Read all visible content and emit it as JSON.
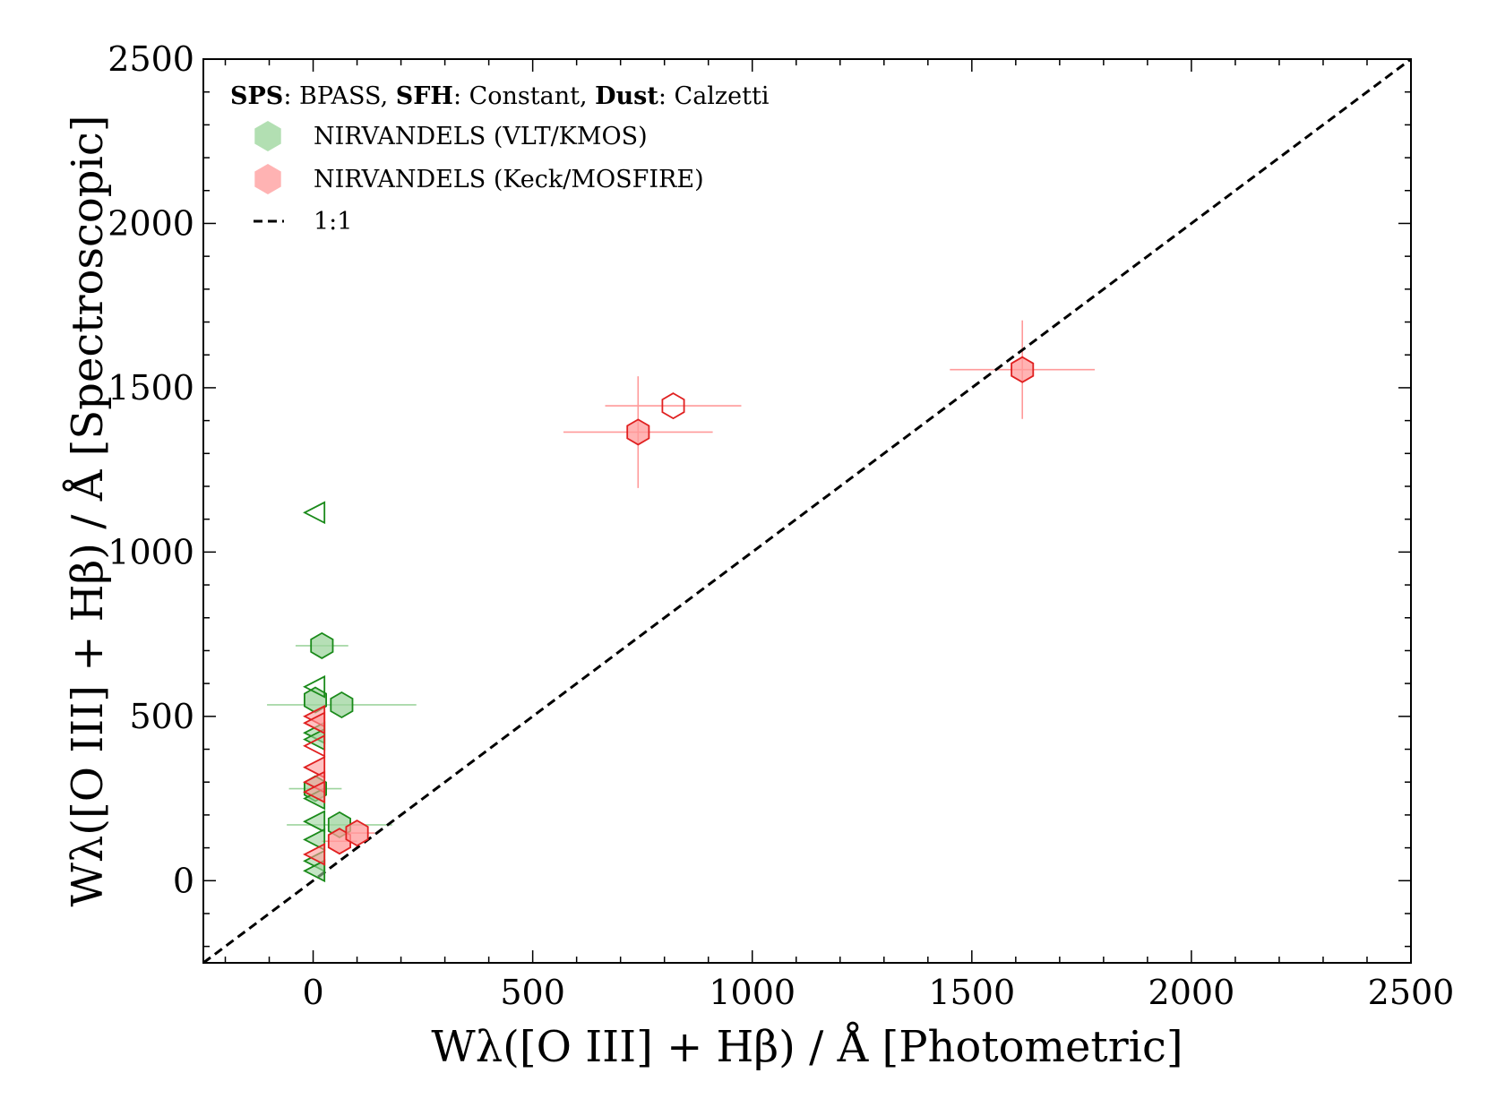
{
  "chart_data": {
    "type": "scatter",
    "title": "",
    "xlabel": "Wλ([O III] + Hβ) / Å  [Photometric]",
    "ylabel": "Wλ([O III] + Hβ) / Å  [Spectroscopic]",
    "xlim": [
      -250,
      2500
    ],
    "ylim": [
      -250,
      2500
    ],
    "xticks": [
      0,
      500,
      1000,
      1500,
      2000,
      2500
    ],
    "yticks": [
      0,
      500,
      1000,
      1500,
      2000,
      2500
    ],
    "xtick_labels": [
      "0",
      "500",
      "1000",
      "1500",
      "2000",
      "2500"
    ],
    "ytick_labels": [
      "0",
      "500",
      "1000",
      "1500",
      "2000",
      "2500"
    ],
    "grid": false,
    "legend_position": "top-left",
    "annotation": {
      "sps_key": "SPS",
      "sps_value": ": BPASS, ",
      "sfh_key": "SFH",
      "sfh_value": ": Constant, ",
      "dust_key": "Dust",
      "dust_value": ": Calzetti"
    },
    "legend": [
      {
        "label": "NIRVANDELS (VLT/KMOS)",
        "color": "#7fc97f",
        "marker": "hexagon"
      },
      {
        "label": "NIRVANDELS (Keck/MOSFIRE)",
        "color": "#ff8080",
        "marker": "hexagon"
      },
      {
        "label": "1:1",
        "color": "#000000",
        "marker": "dashed-line"
      }
    ],
    "reference_line": {
      "label": "1:1",
      "from": [
        -250,
        -250
      ],
      "to": [
        2500,
        2500
      ]
    },
    "series": [
      {
        "name": "NIRVANDELS (VLT/KMOS)",
        "edge_color": "#1a8a1a",
        "fill_color": "#9ed49e",
        "points": [
          {
            "x": 20,
            "y": 715,
            "xerr": 60,
            "yerr": 0,
            "marker": "hexagon",
            "filled": true
          },
          {
            "x": 65,
            "y": 535,
            "xerr": 170,
            "yerr": 0,
            "marker": "hexagon",
            "filled": true
          },
          {
            "x": 5,
            "y": 550,
            "xerr": 0,
            "yerr": 0,
            "marker": "hexagon",
            "filled": true
          },
          {
            "x": 60,
            "y": 170,
            "xerr": 120,
            "yerr": 0,
            "marker": "hexagon",
            "filled": true
          },
          {
            "x": 5,
            "y": 280,
            "xerr": 60,
            "yerr": 0,
            "marker": "hexagon",
            "filled": true
          },
          {
            "x": 5,
            "y": 1120,
            "marker": "triangle-left",
            "filled": false
          },
          {
            "x": 5,
            "y": 590,
            "marker": "triangle-left",
            "filled": false
          },
          {
            "x": 5,
            "y": 450,
            "marker": "triangle-left",
            "filled": true
          },
          {
            "x": 5,
            "y": 430,
            "marker": "triangle-left",
            "filled": true
          },
          {
            "x": 5,
            "y": 250,
            "marker": "triangle-left",
            "filled": true
          },
          {
            "x": 5,
            "y": 180,
            "marker": "triangle-left",
            "filled": true
          },
          {
            "x": 5,
            "y": 125,
            "marker": "triangle-left",
            "filled": true
          },
          {
            "x": 5,
            "y": 60,
            "marker": "triangle-left",
            "filled": true
          },
          {
            "x": 5,
            "y": 30,
            "marker": "triangle-left",
            "filled": true
          }
        ]
      },
      {
        "name": "NIRVANDELS (Keck/MOSFIRE)",
        "edge_color": "#e02020",
        "fill_color": "#ff9a9a",
        "points": [
          {
            "x": 1615,
            "y": 1555,
            "xerr": 165,
            "yerr": 150,
            "marker": "hexagon",
            "filled": true
          },
          {
            "x": 740,
            "y": 1365,
            "xerr": 170,
            "yerr": 170,
            "marker": "hexagon",
            "filled": true
          },
          {
            "x": 820,
            "y": 1445,
            "xerr": 155,
            "yerr": 0,
            "marker": "hexagon",
            "filled": false
          },
          {
            "x": 60,
            "y": 120,
            "xerr": 40,
            "yerr": 0,
            "marker": "hexagon",
            "filled": true
          },
          {
            "x": 100,
            "y": 145,
            "xerr": 40,
            "yerr": 0,
            "marker": "hexagon",
            "filled": true
          },
          {
            "x": 5,
            "y": 500,
            "marker": "triangle-left",
            "filled": true
          },
          {
            "x": 5,
            "y": 480,
            "marker": "triangle-left",
            "filled": true
          },
          {
            "x": 5,
            "y": 410,
            "marker": "triangle-left",
            "filled": false
          },
          {
            "x": 5,
            "y": 345,
            "marker": "triangle-left",
            "filled": true
          },
          {
            "x": 5,
            "y": 300,
            "marker": "triangle-left",
            "filled": true
          },
          {
            "x": 5,
            "y": 270,
            "marker": "triangle-left",
            "filled": true
          },
          {
            "x": 5,
            "y": 80,
            "marker": "triangle-left",
            "filled": true
          }
        ]
      }
    ]
  }
}
